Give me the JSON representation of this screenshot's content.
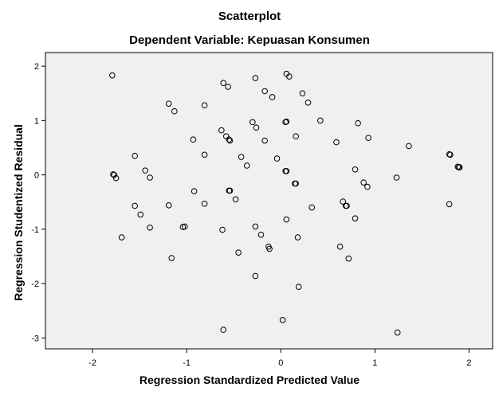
{
  "chart_data": {
    "type": "scatter",
    "title": "Scatterplot",
    "subtitle": "Dependent Variable: Kepuasan Konsumen",
    "xlabel": "Regression Standardized Predicted Value",
    "ylabel": "Regression Studentized Residual",
    "xlim": [
      -2.5,
      2.25
    ],
    "ylim": [
      -3.2,
      2.25
    ],
    "xticks": [
      -2,
      -1,
      0,
      1,
      2
    ],
    "yticks": [
      -3,
      -2,
      -1,
      0,
      1,
      2
    ],
    "grid": false,
    "colors": {
      "plot_bg": "#f0f0f0",
      "marker": "#000000"
    },
    "points": [
      {
        "x": -1.79,
        "y": 1.83
      },
      {
        "x": -0.61,
        "y": 1.69
      },
      {
        "x": -0.56,
        "y": 1.62
      },
      {
        "x": -0.27,
        "y": 1.78
      },
      {
        "x": 0.06,
        "y": 1.86
      },
      {
        "x": 0.09,
        "y": 1.81
      },
      {
        "x": -0.17,
        "y": 1.54
      },
      {
        "x": -0.09,
        "y": 1.43
      },
      {
        "x": 0.23,
        "y": 1.5
      },
      {
        "x": 0.29,
        "y": 1.33
      },
      {
        "x": -1.19,
        "y": 1.31
      },
      {
        "x": -1.13,
        "y": 1.17
      },
      {
        "x": -0.81,
        "y": 1.28
      },
      {
        "x": -0.3,
        "y": 0.97
      },
      {
        "x": -0.26,
        "y": 0.87
      },
      {
        "x": 0.05,
        "y": 0.97
      },
      {
        "x": 0.06,
        "y": 0.98
      },
      {
        "x": 0.42,
        "y": 1.0
      },
      {
        "x": 0.82,
        "y": 0.95
      },
      {
        "x": -0.63,
        "y": 0.82
      },
      {
        "x": -0.58,
        "y": 0.71
      },
      {
        "x": -0.55,
        "y": 0.65
      },
      {
        "x": -0.54,
        "y": 0.63
      },
      {
        "x": -0.93,
        "y": 0.65
      },
      {
        "x": -0.17,
        "y": 0.63
      },
      {
        "x": 0.16,
        "y": 0.71
      },
      {
        "x": 0.93,
        "y": 0.68
      },
      {
        "x": 0.59,
        "y": 0.6
      },
      {
        "x": 1.36,
        "y": 0.53
      },
      {
        "x": -1.55,
        "y": 0.35
      },
      {
        "x": -0.81,
        "y": 0.37
      },
      {
        "x": -0.42,
        "y": 0.33
      },
      {
        "x": -0.36,
        "y": 0.17
      },
      {
        "x": -0.04,
        "y": 0.3
      },
      {
        "x": 0.05,
        "y": 0.07
      },
      {
        "x": 0.06,
        "y": 0.07
      },
      {
        "x": 0.79,
        "y": 0.1
      },
      {
        "x": 1.79,
        "y": 0.38
      },
      {
        "x": 1.8,
        "y": 0.37
      },
      {
        "x": 1.88,
        "y": 0.15
      },
      {
        "x": 1.89,
        "y": 0.14
      },
      {
        "x": 1.9,
        "y": 0.14
      },
      {
        "x": -1.78,
        "y": 0.01
      },
      {
        "x": -1.77,
        "y": 0.0
      },
      {
        "x": -1.75,
        "y": -0.06
      },
      {
        "x": -1.44,
        "y": 0.08
      },
      {
        "x": -1.39,
        "y": -0.05
      },
      {
        "x": 0.15,
        "y": -0.16
      },
      {
        "x": 0.16,
        "y": -0.16
      },
      {
        "x": 0.88,
        "y": -0.14
      },
      {
        "x": 0.92,
        "y": -0.22
      },
      {
        "x": 1.23,
        "y": -0.05
      },
      {
        "x": -0.92,
        "y": -0.3
      },
      {
        "x": -0.55,
        "y": -0.29
      },
      {
        "x": -0.54,
        "y": -0.29
      },
      {
        "x": -0.48,
        "y": -0.45
      },
      {
        "x": -1.55,
        "y": -0.57
      },
      {
        "x": -1.19,
        "y": -0.56
      },
      {
        "x": -0.81,
        "y": -0.53
      },
      {
        "x": 0.33,
        "y": -0.6
      },
      {
        "x": 0.66,
        "y": -0.49
      },
      {
        "x": 0.69,
        "y": -0.57
      },
      {
        "x": 0.7,
        "y": -0.57
      },
      {
        "x": 1.79,
        "y": -0.54
      },
      {
        "x": -1.49,
        "y": -0.73
      },
      {
        "x": 0.06,
        "y": -0.82
      },
      {
        "x": 0.79,
        "y": -0.8
      },
      {
        "x": -1.39,
        "y": -0.97
      },
      {
        "x": -1.04,
        "y": -0.96
      },
      {
        "x": -1.02,
        "y": -0.95
      },
      {
        "x": -0.62,
        "y": -1.01
      },
      {
        "x": -0.27,
        "y": -0.95
      },
      {
        "x": -0.21,
        "y": -1.1
      },
      {
        "x": -0.13,
        "y": -1.32
      },
      {
        "x": -0.12,
        "y": -1.36
      },
      {
        "x": 0.18,
        "y": -1.15
      },
      {
        "x": 0.63,
        "y": -1.32
      },
      {
        "x": -1.69,
        "y": -1.15
      },
      {
        "x": -1.16,
        "y": -1.53
      },
      {
        "x": -0.45,
        "y": -1.43
      },
      {
        "x": 0.72,
        "y": -1.54
      },
      {
        "x": -0.27,
        "y": -1.86
      },
      {
        "x": 0.19,
        "y": -2.06
      },
      {
        "x": 0.02,
        "y": -2.67
      },
      {
        "x": -0.61,
        "y": -2.85
      },
      {
        "x": 1.24,
        "y": -2.9
      }
    ]
  }
}
